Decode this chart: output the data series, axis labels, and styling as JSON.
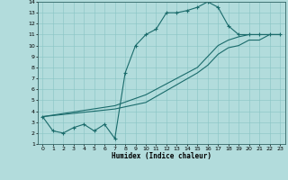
{
  "xlabel": "Humidex (Indice chaleur)",
  "bg_color": "#b2dcdc",
  "line_color": "#1a6b6b",
  "xlim": [
    -0.5,
    23.5
  ],
  "ylim": [
    1,
    14
  ],
  "xticks": [
    0,
    1,
    2,
    3,
    4,
    5,
    6,
    7,
    8,
    9,
    10,
    11,
    12,
    13,
    14,
    15,
    16,
    17,
    18,
    19,
    20,
    21,
    22,
    23
  ],
  "yticks": [
    1,
    2,
    3,
    4,
    5,
    6,
    7,
    8,
    9,
    10,
    11,
    12,
    13,
    14
  ],
  "curve1_x": [
    0,
    1,
    2,
    3,
    4,
    5,
    6,
    7,
    8,
    9,
    10,
    11,
    12,
    13,
    14,
    15,
    16,
    17,
    18,
    19,
    20,
    21,
    22,
    23
  ],
  "curve1_y": [
    3.5,
    2.2,
    2.0,
    2.5,
    2.8,
    2.2,
    2.8,
    1.5,
    7.5,
    10.0,
    11.0,
    11.5,
    13.0,
    13.0,
    13.2,
    13.5,
    14.0,
    13.5,
    11.8,
    11.0,
    11.0,
    11.0,
    11.0,
    11.0
  ],
  "curve2_x": [
    0,
    7,
    10,
    15,
    16,
    17,
    18,
    19,
    20,
    21,
    22,
    23
  ],
  "curve2_y": [
    3.5,
    4.5,
    5.5,
    8.0,
    9.0,
    10.0,
    10.5,
    10.8,
    11.0,
    11.0,
    11.0,
    11.0
  ],
  "curve3_x": [
    0,
    7,
    10,
    15,
    16,
    17,
    18,
    19,
    20,
    21,
    22,
    23
  ],
  "curve3_y": [
    3.5,
    4.2,
    4.8,
    7.5,
    8.2,
    9.2,
    9.8,
    10.0,
    10.5,
    10.5,
    11.0,
    11.0
  ]
}
